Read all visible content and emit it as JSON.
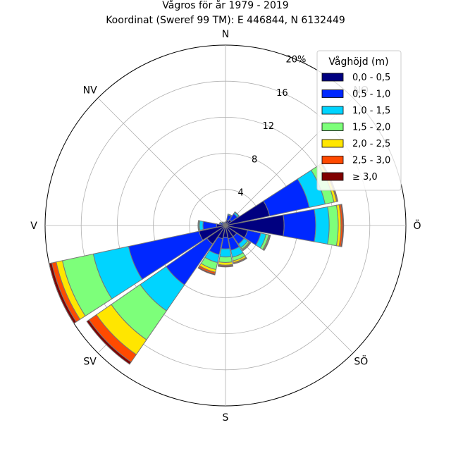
{
  "chart_data": {
    "type": "wind-rose",
    "title": "Vågros för år 1979 - 2019",
    "subtitle": "Koordinat (Sweref 99 TM): E 446844, N 6132449",
    "direction_labels": [
      "N",
      "NO",
      "Ö",
      "SÖ",
      "S",
      "SV",
      "V",
      "NV"
    ],
    "radial_ticks": [
      {
        "value": 4,
        "label": "4"
      },
      {
        "value": 8,
        "label": "8"
      },
      {
        "value": 12,
        "label": "12"
      },
      {
        "value": 16,
        "label": "16"
      },
      {
        "value": 20,
        "label": "20%"
      }
    ],
    "rmax": 20,
    "sector_width_deg": 22.5,
    "legend": {
      "title": "Våghöjd (m)",
      "placement": "top-right",
      "bins": [
        {
          "label": "0,0 - 0,5",
          "color": "#000080"
        },
        {
          "label": "0,5 - 1,0",
          "color": "#0028ff"
        },
        {
          "label": "1,0 - 1,5",
          "color": "#00d4ff"
        },
        {
          "label": "1,5 - 2,0",
          "color": "#7dff7a"
        },
        {
          "label": "2,0 - 2,5",
          "color": "#ffe600"
        },
        {
          "label": "2,5 - 3,0",
          "color": "#ff4a00"
        },
        {
          "label": "≥ 3,0",
          "color": "#800000"
        }
      ]
    },
    "sectors": [
      {
        "dir": 0,
        "values": [
          0.2,
          0.2,
          0,
          0,
          0,
          0,
          0
        ]
      },
      {
        "dir": 22.5,
        "values": [
          0.6,
          0.6,
          0.1,
          0,
          0,
          0,
          0
        ]
      },
      {
        "dir": 45,
        "values": [
          0.8,
          0.8,
          0.2,
          0.05,
          0,
          0,
          0
        ]
      },
      {
        "dir": 67.5,
        "values": [
          5.0,
          4.5,
          1.8,
          1.0,
          0.3,
          0.1,
          0.05
        ]
      },
      {
        "dir": 90,
        "values": [
          6.5,
          3.5,
          1.5,
          1.0,
          0.3,
          0.2,
          0.1
        ]
      },
      {
        "dir": 112.5,
        "values": [
          2.5,
          1.5,
          0.6,
          0.3,
          0.1,
          0.05,
          0.05
        ]
      },
      {
        "dir": 135,
        "values": [
          1.5,
          1.0,
          0.5,
          0.2,
          0.1,
          0.05,
          0.05
        ]
      },
      {
        "dir": 157.5,
        "values": [
          1.5,
          1.3,
          0.8,
          0.4,
          0.2,
          0.1,
          0.05
        ]
      },
      {
        "dir": 180,
        "values": [
          1.3,
          1.3,
          0.9,
          0.6,
          0.3,
          0.1,
          0.1
        ]
      },
      {
        "dir": 202.5,
        "values": [
          1.5,
          1.8,
          0.9,
          0.8,
          0.3,
          0.2,
          0.1
        ]
      },
      {
        "dir": 225,
        "values": [
          2.5,
          5.5,
          3.5,
          3.9,
          2.0,
          1.0,
          0.3
        ]
      },
      {
        "dir": 247.5,
        "values": [
          3.0,
          8.0,
          4.0,
          3.5,
          0.7,
          0.5,
          0.3
        ]
      },
      {
        "dir": 270,
        "values": [
          1.0,
          1.5,
          0.4,
          0.1,
          0.05,
          0,
          0
        ]
      },
      {
        "dir": 292.5,
        "values": [
          0.3,
          0.3,
          0.1,
          0,
          0,
          0,
          0
        ]
      },
      {
        "dir": 315,
        "values": [
          0.2,
          0.2,
          0.1,
          0,
          0,
          0,
          0
        ]
      },
      {
        "dir": 337.5,
        "values": [
          0.2,
          0.15,
          0,
          0,
          0,
          0,
          0
        ]
      }
    ]
  }
}
